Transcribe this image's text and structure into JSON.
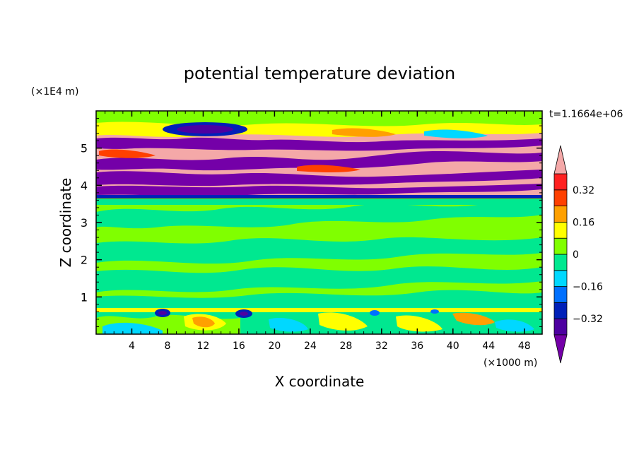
{
  "chart_data": {
    "type": "heatmap",
    "title": "potential temperature deviation",
    "xlabel": "X coordinate",
    "ylabel": "Z coordinate",
    "x_scale_label": "(×1000 m)",
    "y_scale_label": "(×1E4 m)",
    "time_label": "t=1.1664e+06",
    "xlim": [
      0,
      50
    ],
    "ylim": [
      0,
      6
    ],
    "x_ticks": [
      4,
      8,
      12,
      16,
      20,
      24,
      28,
      32,
      36,
      40,
      44,
      48
    ],
    "x_tick_labels": [
      "4",
      "8",
      "12",
      "16",
      "20",
      "24",
      "28",
      "32",
      "36",
      "40",
      "44",
      "48"
    ],
    "y_ticks": [
      1,
      2,
      3,
      4,
      5
    ],
    "y_tick_labels": [
      "1",
      "2",
      "3",
      "4",
      "5"
    ],
    "colorbar": {
      "levels": [
        -0.4,
        -0.32,
        -0.24,
        -0.16,
        -0.08,
        0,
        0.08,
        0.16,
        0.24,
        0.32,
        0.4
      ],
      "labeled_levels": [
        -0.32,
        -0.16,
        0,
        0.16,
        0.32
      ],
      "labels": [
        "0.32",
        "0.16",
        "0",
        "−0.16",
        "−0.32"
      ],
      "colors": [
        "#7400a8",
        "#4d00a0",
        "#0020b8",
        "#0070ff",
        "#00d8ff",
        "#00e890",
        "#80ff00",
        "#ffff00",
        "#ffa000",
        "#ff4000",
        "#ff2020",
        "#f4a8a8"
      ],
      "extend": "both"
    },
    "bands": [
      {
        "z_range": [
          0,
          0.6
        ],
        "dominant": "#80ff00",
        "description_value": "mixed -0.32 to 0.24"
      },
      {
        "z_range": [
          0.6,
          3.65
        ],
        "dominant": "#80ff00",
        "secondary": "#00e890"
      },
      {
        "z_range": [
          3.65,
          6.0
        ],
        "dominant": "#f4a8a8",
        "secondary": "#7400a8"
      }
    ]
  }
}
